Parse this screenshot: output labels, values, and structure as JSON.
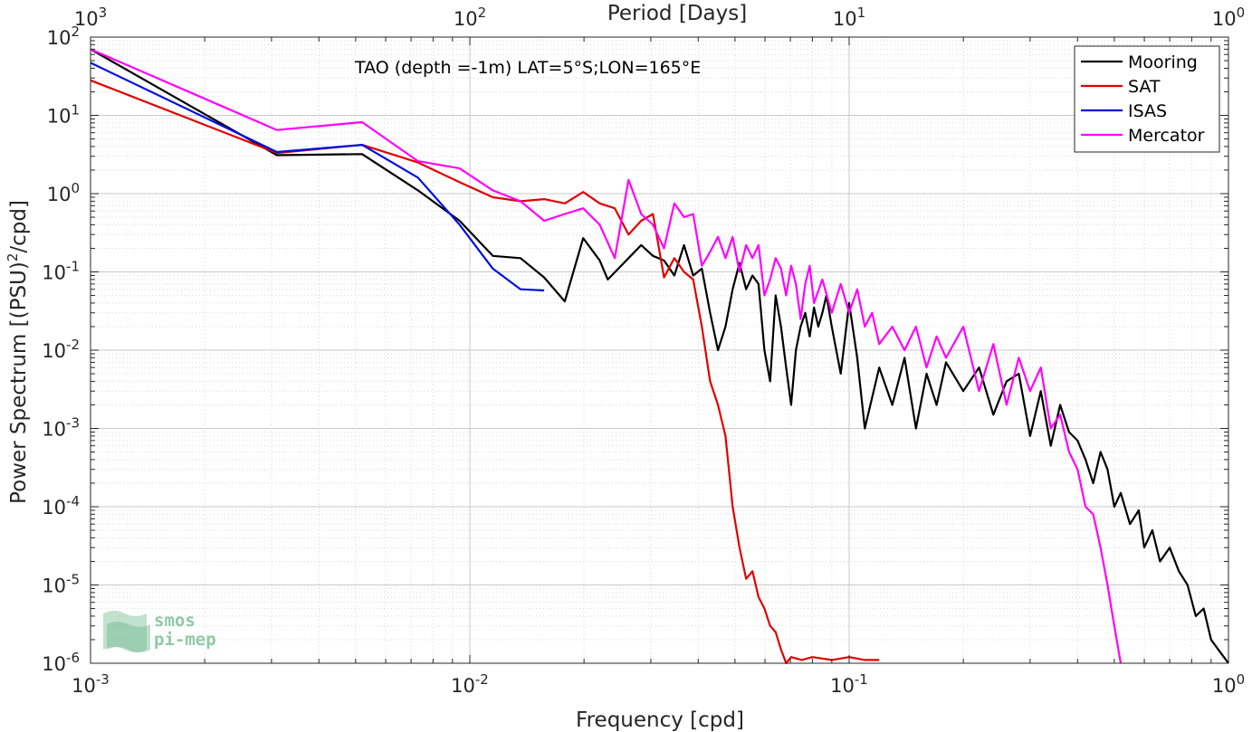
{
  "chart_data": {
    "type": "line",
    "title": "",
    "annotation": "TAO (depth =-1m) LAT=5°S;LON=165°E",
    "xlabel": "Frequency [cpd]",
    "ylabel_main": "Power Spectrum [(PSU)",
    "ylabel_sup": "2",
    "ylabel_end": "/cpd]",
    "top_xlabel": "Period [Days]",
    "xscale": "log",
    "yscale": "log",
    "xlim": [
      0.001,
      1
    ],
    "ylim": [
      1e-06,
      100
    ],
    "grid": true,
    "legend_position": "top-right",
    "x_ticks": [
      {
        "base": "10",
        "exp": "-3",
        "value": 0.001
      },
      {
        "base": "10",
        "exp": "-2",
        "value": 0.01
      },
      {
        "base": "10",
        "exp": "-1",
        "value": 0.1
      },
      {
        "base": "10",
        "exp": "0",
        "value": 1
      }
    ],
    "top_ticks": [
      {
        "base": "10",
        "exp": "3",
        "value": 0.001
      },
      {
        "base": "10",
        "exp": "2",
        "value": 0.01
      },
      {
        "base": "10",
        "exp": "1",
        "value": 0.1
      },
      {
        "base": "10",
        "exp": "0",
        "value": 1
      }
    ],
    "y_ticks": [
      {
        "base": "10",
        "exp": "2",
        "value": 100
      },
      {
        "base": "10",
        "exp": "1",
        "value": 10
      },
      {
        "base": "10",
        "exp": "0",
        "value": 1
      },
      {
        "base": "10",
        "exp": "-1",
        "value": 0.1
      },
      {
        "base": "10",
        "exp": "-2",
        "value": 0.01
      },
      {
        "base": "10",
        "exp": "-3",
        "value": 0.001
      },
      {
        "base": "10",
        "exp": "-4",
        "value": 0.0001
      },
      {
        "base": "10",
        "exp": "-5",
        "value": 1e-05
      },
      {
        "base": "10",
        "exp": "-6",
        "value": 1e-06
      }
    ],
    "series": [
      {
        "name": "Mooring",
        "color": "#000000",
        "points": [
          [
            0.001,
            70
          ],
          [
            0.0031,
            3.1
          ],
          [
            0.0052,
            3.2
          ],
          [
            0.0073,
            1.1
          ],
          [
            0.0094,
            0.45
          ],
          [
            0.0115,
            0.16
          ],
          [
            0.0136,
            0.15
          ],
          [
            0.0157,
            0.085
          ],
          [
            0.0178,
            0.042
          ],
          [
            0.0199,
            0.27
          ],
          [
            0.022,
            0.14
          ],
          [
            0.0231,
            0.08
          ],
          [
            0.0262,
            0.15
          ],
          [
            0.0283,
            0.22
          ],
          [
            0.0304,
            0.16
          ],
          [
            0.0325,
            0.14
          ],
          [
            0.0346,
            0.09
          ],
          [
            0.0367,
            0.22
          ],
          [
            0.0388,
            0.09
          ],
          [
            0.0409,
            0.11
          ],
          [
            0.043,
            0.03
          ],
          [
            0.0451,
            0.01
          ],
          [
            0.0472,
            0.02
          ],
          [
            0.0493,
            0.06
          ],
          [
            0.0514,
            0.13
          ],
          [
            0.0535,
            0.06
          ],
          [
            0.0556,
            0.09
          ],
          [
            0.0577,
            0.07
          ],
          [
            0.0598,
            0.01
          ],
          [
            0.0619,
            0.004
          ],
          [
            0.064,
            0.05
          ],
          [
            0.0661,
            0.02
          ],
          [
            0.0682,
            0.006
          ],
          [
            0.0703,
            0.002
          ],
          [
            0.0724,
            0.01
          ],
          [
            0.0745,
            0.02
          ],
          [
            0.0766,
            0.03
          ],
          [
            0.0787,
            0.015
          ],
          [
            0.0808,
            0.035
          ],
          [
            0.0829,
            0.02
          ],
          [
            0.085,
            0.03
          ],
          [
            0.0871,
            0.05
          ],
          [
            0.09,
            0.02
          ],
          [
            0.095,
            0.005
          ],
          [
            0.1,
            0.04
          ],
          [
            0.105,
            0.008
          ],
          [
            0.11,
            0.001
          ],
          [
            0.12,
            0.006
          ],
          [
            0.13,
            0.002
          ],
          [
            0.14,
            0.008
          ],
          [
            0.15,
            0.001
          ],
          [
            0.16,
            0.005
          ],
          [
            0.17,
            0.002
          ],
          [
            0.18,
            0.007
          ],
          [
            0.2,
            0.003
          ],
          [
            0.22,
            0.006
          ],
          [
            0.24,
            0.0015
          ],
          [
            0.26,
            0.004
          ],
          [
            0.28,
            0.005
          ],
          [
            0.3,
            0.0008
          ],
          [
            0.32,
            0.003
          ],
          [
            0.34,
            0.0006
          ],
          [
            0.36,
            0.002
          ],
          [
            0.38,
            0.0009
          ],
          [
            0.4,
            0.0007
          ],
          [
            0.42,
            0.0004
          ],
          [
            0.44,
            0.0002
          ],
          [
            0.46,
            0.0005
          ],
          [
            0.48,
            0.0003
          ],
          [
            0.5,
            0.0001
          ],
          [
            0.52,
            0.00015
          ],
          [
            0.55,
            6e-05
          ],
          [
            0.58,
            9e-05
          ],
          [
            0.6,
            3e-05
          ],
          [
            0.63,
            5e-05
          ],
          [
            0.66,
            2e-05
          ],
          [
            0.7,
            3e-05
          ],
          [
            0.74,
            1.5e-05
          ],
          [
            0.78,
            1e-05
          ],
          [
            0.82,
            4e-06
          ],
          [
            0.86,
            5e-06
          ],
          [
            0.9,
            2e-06
          ],
          [
            0.94,
            1.5e-06
          ],
          [
            1.0,
            1e-06
          ]
        ]
      },
      {
        "name": "SAT",
        "color": "#e00000",
        "points": [
          [
            0.001,
            28
          ],
          [
            0.0031,
            3.3
          ],
          [
            0.0052,
            4.2
          ],
          [
            0.0073,
            2.5
          ],
          [
            0.0094,
            1.4
          ],
          [
            0.0115,
            0.9
          ],
          [
            0.0136,
            0.8
          ],
          [
            0.0157,
            0.85
          ],
          [
            0.0178,
            0.75
          ],
          [
            0.0199,
            1.05
          ],
          [
            0.022,
            0.75
          ],
          [
            0.0241,
            0.65
          ],
          [
            0.0262,
            0.3
          ],
          [
            0.0283,
            0.45
          ],
          [
            0.0304,
            0.55
          ],
          [
            0.0325,
            0.085
          ],
          [
            0.0346,
            0.15
          ],
          [
            0.0367,
            0.1
          ],
          [
            0.0388,
            0.08
          ],
          [
            0.0409,
            0.02
          ],
          [
            0.043,
            0.004
          ],
          [
            0.0451,
            0.002
          ],
          [
            0.0472,
            0.0008
          ],
          [
            0.0493,
            0.0001
          ],
          [
            0.0514,
            3e-05
          ],
          [
            0.0535,
            1.2e-05
          ],
          [
            0.0556,
            1.5e-05
          ],
          [
            0.0577,
            7e-06
          ],
          [
            0.0598,
            5e-06
          ],
          [
            0.0619,
            3e-06
          ],
          [
            0.064,
            2.5e-06
          ],
          [
            0.0661,
            1.5e-06
          ],
          [
            0.0682,
            1e-06
          ],
          [
            0.0703,
            1.2e-06
          ],
          [
            0.075,
            1.1e-06
          ],
          [
            0.08,
            1.2e-06
          ],
          [
            0.09,
            1.1e-06
          ],
          [
            0.1,
            1.2e-06
          ],
          [
            0.11,
            1.1e-06
          ],
          [
            0.12,
            1.1e-06
          ]
        ]
      },
      {
        "name": "ISAS",
        "color": "#0010e0",
        "points": [
          [
            0.001,
            47
          ],
          [
            0.0031,
            3.4
          ],
          [
            0.0052,
            4.2
          ],
          [
            0.0073,
            1.6
          ],
          [
            0.0094,
            0.4
          ],
          [
            0.0115,
            0.11
          ],
          [
            0.0136,
            0.06
          ],
          [
            0.0157,
            0.058
          ]
        ]
      },
      {
        "name": "Mercator",
        "color": "#ff00ff",
        "points": [
          [
            0.001,
            70
          ],
          [
            0.0031,
            6.5
          ],
          [
            0.0052,
            8.2
          ],
          [
            0.0073,
            2.6
          ],
          [
            0.0094,
            2.1
          ],
          [
            0.0115,
            1.1
          ],
          [
            0.0136,
            0.8
          ],
          [
            0.0157,
            0.45
          ],
          [
            0.0178,
            0.55
          ],
          [
            0.0199,
            0.65
          ],
          [
            0.022,
            0.4
          ],
          [
            0.0241,
            0.15
          ],
          [
            0.0262,
            1.5
          ],
          [
            0.0283,
            0.55
          ],
          [
            0.0304,
            0.4
          ],
          [
            0.0325,
            0.2
          ],
          [
            0.0346,
            0.75
          ],
          [
            0.0367,
            0.5
          ],
          [
            0.0388,
            0.55
          ],
          [
            0.0409,
            0.12
          ],
          [
            0.043,
            0.18
          ],
          [
            0.0451,
            0.28
          ],
          [
            0.0472,
            0.15
          ],
          [
            0.0493,
            0.28
          ],
          [
            0.0514,
            0.1
          ],
          [
            0.0535,
            0.22
          ],
          [
            0.0556,
            0.15
          ],
          [
            0.0577,
            0.22
          ],
          [
            0.0598,
            0.05
          ],
          [
            0.0619,
            0.08
          ],
          [
            0.064,
            0.15
          ],
          [
            0.0661,
            0.11
          ],
          [
            0.0682,
            0.05
          ],
          [
            0.0703,
            0.12
          ],
          [
            0.0724,
            0.07
          ],
          [
            0.0745,
            0.025
          ],
          [
            0.0766,
            0.07
          ],
          [
            0.0787,
            0.12
          ],
          [
            0.0808,
            0.04
          ],
          [
            0.085,
            0.08
          ],
          [
            0.09,
            0.03
          ],
          [
            0.095,
            0.07
          ],
          [
            0.1,
            0.03
          ],
          [
            0.105,
            0.06
          ],
          [
            0.11,
            0.02
          ],
          [
            0.115,
            0.03
          ],
          [
            0.12,
            0.012
          ],
          [
            0.13,
            0.02
          ],
          [
            0.14,
            0.01
          ],
          [
            0.15,
            0.02
          ],
          [
            0.16,
            0.006
          ],
          [
            0.17,
            0.015
          ],
          [
            0.18,
            0.008
          ],
          [
            0.2,
            0.02
          ],
          [
            0.22,
            0.003
          ],
          [
            0.24,
            0.012
          ],
          [
            0.26,
            0.002
          ],
          [
            0.28,
            0.008
          ],
          [
            0.3,
            0.003
          ],
          [
            0.32,
            0.006
          ],
          [
            0.34,
            0.001
          ],
          [
            0.36,
            0.0015
          ],
          [
            0.38,
            0.0005
          ],
          [
            0.4,
            0.0003
          ],
          [
            0.42,
            0.0001
          ],
          [
            0.44,
            8e-05
          ],
          [
            0.46,
            3e-05
          ],
          [
            0.48,
            1e-05
          ],
          [
            0.5,
            3e-06
          ],
          [
            0.52,
            1e-06
          ]
        ]
      }
    ]
  },
  "logo": {
    "line1": "smos",
    "line2": "pi-mep",
    "color": "#8fc9a6"
  }
}
